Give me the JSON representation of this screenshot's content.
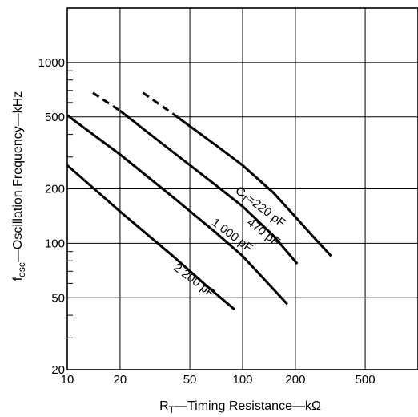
{
  "chart_data": {
    "type": "line",
    "title": "",
    "xlabel": {
      "main": "R",
      "sub": "T",
      "rest": "—Timing Resistance—kΩ"
    },
    "ylabel": {
      "main": "f",
      "sub": "osc",
      "rest": "—Oscillation Frequency—kHz"
    },
    "xscale": "log",
    "yscale": "log",
    "xlim": [
      10,
      1000
    ],
    "ylim": [
      20,
      2000
    ],
    "grid": true,
    "x_ticks": [
      10,
      20,
      50,
      100,
      200,
      500
    ],
    "x_tick_labels": [
      "10",
      "20",
      "50",
      "100",
      "200",
      "500"
    ],
    "y_ticks": [
      20,
      50,
      100,
      200,
      500,
      1000
    ],
    "y_tick_labels": [
      "20",
      "50",
      "100",
      "200",
      "500",
      "1000"
    ],
    "series": [
      {
        "name": "Cт=220 pF",
        "label": {
          "main": "C",
          "sub": "T",
          "rest": "=220 pF"
        },
        "dashed": {
          "x": [
            27,
            40
          ],
          "y": [
            680,
            520
          ]
        },
        "x": [
          40,
          70,
          100,
          150,
          200,
          250,
          320
        ],
        "y": [
          520,
          350,
          270,
          190,
          140,
          110,
          85
        ]
      },
      {
        "name": "470 pF",
        "label": {
          "main": "470 pF",
          "sub": "",
          "rest": ""
        },
        "dashed": {
          "x": [
            14,
            20
          ],
          "y": [
            680,
            540
          ]
        },
        "x": [
          20,
          40,
          70,
          100,
          150,
          205
        ],
        "y": [
          540,
          320,
          210,
          160,
          110,
          77
        ]
      },
      {
        "name": "1 000 pF",
        "label": {
          "main": "1 000 pF",
          "sub": "",
          "rest": ""
        },
        "x": [
          10,
          20,
          40,
          70,
          100,
          180
        ],
        "y": [
          510,
          310,
          180,
          115,
          85,
          46
        ]
      },
      {
        "name": "2 200 pF",
        "label": {
          "main": "2 200 pF",
          "sub": "",
          "rest": ""
        },
        "x": [
          10,
          20,
          40,
          60,
          90
        ],
        "y": [
          270,
          150,
          85,
          60,
          43
        ]
      }
    ]
  }
}
